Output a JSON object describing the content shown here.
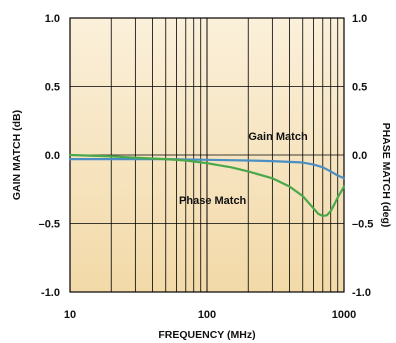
{
  "chart_data": {
    "type": "line",
    "xlabel": "FREQUENCY (MHz)",
    "ylabel_left": "GAIN MATCH (dB)",
    "ylabel_right": "PHASE MATCH (deg)",
    "x_scale": "log",
    "xlim": [
      10,
      1000
    ],
    "ylim_left": [
      -1.0,
      1.0
    ],
    "ylim_right": [
      -1.0,
      1.0
    ],
    "x_ticks": [
      10,
      100,
      1000
    ],
    "x_tick_labels": [
      "10",
      "100",
      "1000"
    ],
    "y_ticks": [
      1.0,
      0.5,
      0.0,
      -0.5,
      -1.0
    ],
    "y_tick_labels_left": [
      "1.0",
      "0.5",
      "0.0",
      "–0.5",
      "-1.0"
    ],
    "y_tick_labels_right": [
      "1.0",
      "0.5",
      "0.0",
      "–0.5",
      "-1.0"
    ],
    "grid": true,
    "background_gradient": [
      "#fbf0da",
      "#f2d9a8"
    ],
    "series": [
      {
        "name": "Gain Match",
        "axis": "left",
        "color": "#4a8ec2",
        "x": [
          10,
          20,
          50,
          100,
          200,
          300,
          400,
          500,
          600,
          700,
          800,
          900,
          1000
        ],
        "y": [
          -0.03,
          -0.03,
          -0.03,
          -0.035,
          -0.04,
          -0.045,
          -0.05,
          -0.055,
          -0.07,
          -0.09,
          -0.12,
          -0.15,
          -0.17
        ]
      },
      {
        "name": "Phase Match",
        "axis": "right",
        "color": "#4aa84a",
        "x": [
          10,
          20,
          30,
          50,
          70,
          100,
          150,
          200,
          300,
          400,
          500,
          600,
          650,
          700,
          750,
          800,
          850,
          900,
          950,
          1000
        ],
        "y": [
          0.0,
          -0.01,
          -0.02,
          -0.03,
          -0.04,
          -0.06,
          -0.09,
          -0.12,
          -0.17,
          -0.23,
          -0.3,
          -0.39,
          -0.43,
          -0.445,
          -0.44,
          -0.41,
          -0.36,
          -0.31,
          -0.27,
          -0.23
        ]
      }
    ],
    "annotations": [
      {
        "text": "Gain Match",
        "x": 330,
        "y": 0.14
      },
      {
        "text": "Phase Match",
        "x": 110,
        "y": -0.33
      }
    ]
  }
}
